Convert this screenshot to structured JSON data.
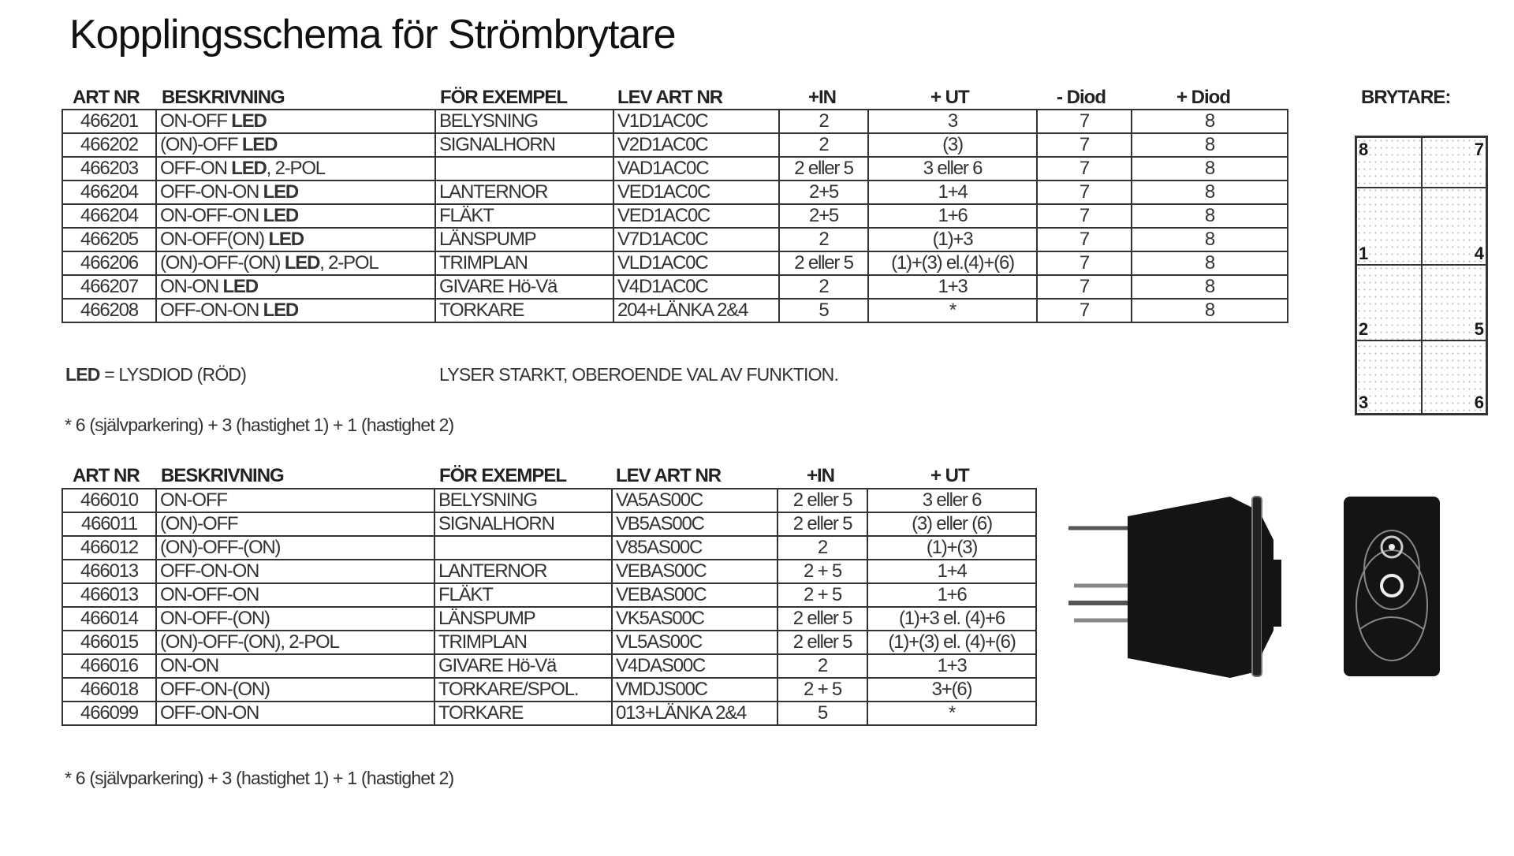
{
  "title": "Kopplingsschema för Strömbrytare",
  "table1": {
    "headers": [
      "ART NR",
      "BESKRIVNING",
      "FÖR EXEMPEL",
      "LEV ART NR",
      "+IN",
      "+ UT",
      "- Diod",
      "+ Diod"
    ],
    "rows": [
      {
        "art": "466201",
        "desc": "ON-OFF ",
        "bold": "LED",
        "suffix": "",
        "ex": "BELYSNING",
        "lev": "V1D1AC0C",
        "in": "2",
        "ut": "3",
        "dminus": "7",
        "dplus": "8"
      },
      {
        "art": "466202",
        "desc": "(ON)-OFF ",
        "bold": "LED",
        "suffix": "",
        "ex": "SIGNALHORN",
        "lev": "V2D1AC0C",
        "in": "2",
        "ut": "(3)",
        "dminus": "7",
        "dplus": "8"
      },
      {
        "art": "466203",
        "desc": "OFF-ON ",
        "bold": "LED",
        "suffix": ", 2-POL",
        "ex": "",
        "lev": "VAD1AC0C",
        "in": "2 eller 5",
        "ut": "3 eller 6",
        "dminus": "7",
        "dplus": "8"
      },
      {
        "art": "466204",
        "desc": "OFF-ON-ON ",
        "bold": "LED",
        "suffix": "",
        "ex": "LANTERNOR",
        "lev": "VED1AC0C",
        "in": "2+5",
        "ut": "1+4",
        "dminus": "7",
        "dplus": "8"
      },
      {
        "art": "466204",
        "desc": "ON-OFF-ON ",
        "bold": "LED",
        "suffix": "",
        "ex": "FLÄKT",
        "lev": "VED1AC0C",
        "in": "2+5",
        "ut": "1+6",
        "dminus": "7",
        "dplus": "8"
      },
      {
        "art": "466205",
        "desc": "ON-OFF(ON) ",
        "bold": "LED",
        "suffix": "",
        "ex": "LÄNSPUMP",
        "lev": "V7D1AC0C",
        "in": "2",
        "ut": "(1)+3",
        "dminus": "7",
        "dplus": "8"
      },
      {
        "art": "466206",
        "desc": "(ON)-OFF-(ON) ",
        "bold": "LED",
        "suffix": ", 2-POL",
        "ex": "TRIMPLAN",
        "lev": "VLD1AC0C",
        "in": "2 eller 5",
        "ut": "(1)+(3) el.(4)+(6)",
        "dminus": "7",
        "dplus": "8"
      },
      {
        "art": "466207",
        "desc": "ON-ON ",
        "bold": "LED",
        "suffix": "",
        "ex": "GIVARE Hö-Vä",
        "lev": "V4D1AC0C",
        "in": "2",
        "ut": "1+3",
        "dminus": "7",
        "dplus": "8"
      },
      {
        "art": "466208",
        "desc": "OFF-ON-ON ",
        "bold": "LED",
        "suffix": "",
        "ex": "TORKARE",
        "lev": "204+LÄNKA 2&4",
        "in": "5",
        "ut": "*",
        "dminus": "7",
        "dplus": "8"
      }
    ]
  },
  "led_note": {
    "bold": "LED",
    "text": " = LYSDIOD (RÖD)",
    "right": "LYSER STARKT, OBEROENDE VAL AV FUNKTION."
  },
  "footnote1": "* 6 (självparkering) + 3 (hastighet 1) + 1 (hastighet 2)",
  "table2": {
    "headers": [
      "ART NR",
      "BESKRIVNING",
      "FÖR EXEMPEL",
      "LEV ART NR",
      "+IN",
      "+ UT"
    ],
    "rows": [
      {
        "art": "466010",
        "desc": "ON-OFF",
        "ex": "BELYSNING",
        "lev": "VA5AS00C",
        "in": "2 eller 5",
        "ut": "3 eller 6"
      },
      {
        "art": "466011",
        "desc": "(ON)-OFF",
        "ex": "SIGNALHORN",
        "lev": "VB5AS00C",
        "in": "2 eller 5",
        "ut": "(3) eller (6)"
      },
      {
        "art": "466012",
        "desc": "(ON)-OFF-(ON)",
        "ex": "",
        "lev": "V85AS00C",
        "in": "2",
        "ut": "(1)+(3)"
      },
      {
        "art": "466013",
        "desc": "OFF-ON-ON",
        "ex": "LANTERNOR",
        "lev": "VEBAS00C",
        "in": "2 + 5",
        "ut": "1+4"
      },
      {
        "art": "466013",
        "desc": "ON-OFF-ON",
        "ex": "FLÄKT",
        "lev": "VEBAS00C",
        "in": "2 + 5",
        "ut": "1+6"
      },
      {
        "art": "466014",
        "desc": "ON-OFF-(ON)",
        "ex": "LÄNSPUMP",
        "lev": "VK5AS00C",
        "in": "2 eller 5",
        "ut": "(1)+3 el. (4)+6"
      },
      {
        "art": "466015",
        "desc": "(ON)-OFF-(ON), 2-POL",
        "ex": "TRIMPLAN",
        "lev": "VL5AS00C",
        "in": "2 eller 5",
        "ut": "(1)+(3) el. (4)+(6)"
      },
      {
        "art": "466016",
        "desc": "ON-ON",
        "ex": "GIVARE Hö-Vä",
        "lev": "V4DAS00C",
        "in": "2",
        "ut": "1+3"
      },
      {
        "art": "466018",
        "desc": "OFF-ON-(ON)",
        "ex": "TORKARE/SPOL.",
        "lev": "VMDJS00C",
        "in": "2 + 5",
        "ut": "3+(6)"
      },
      {
        "art": "466099",
        "desc": "OFF-ON-ON",
        "ex": "TORKARE",
        "lev": "013+LÄNKA 2&4",
        "in": "5",
        "ut": "*"
      }
    ]
  },
  "footnote2": "* 6 (självparkering) + 3 (hastighet 1) + 1 (hastighet 2)",
  "brytare": {
    "label": "BRYTARE:",
    "pins": [
      [
        "8",
        "7"
      ],
      [
        "1",
        "4"
      ],
      [
        "2",
        "5"
      ],
      [
        "3",
        "6"
      ]
    ]
  }
}
